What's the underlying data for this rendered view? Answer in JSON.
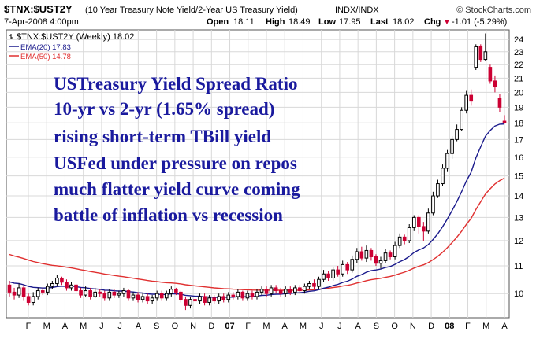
{
  "header": {
    "symbol": "$TNX:$UST2Y",
    "description": "(10 Year Treasury Note Yield/2-Year US Treasury Yield)",
    "exchange": "INDX/INDX",
    "brand": "© StockCharts.com",
    "date": "7-Apr-2008 4:00pm",
    "open_label": "Open",
    "open": "18.11",
    "high_label": "High",
    "high": "18.49",
    "low_label": "Low",
    "low": "17.95",
    "last_label": "Last",
    "last": "18.02",
    "chg_label": "Chg",
    "chg": "-1.01 (-5.29%)",
    "chg_arrow": "▼"
  },
  "legend": {
    "price": "$TNX:$UST2Y (Weekly) 18.02",
    "ema20": "EMA(20) 17.83",
    "ema50": "EMA(50) 14.78"
  },
  "annotation": [
    "USTreasury Yield Spread Ratio",
    "10-yr  vs  2-yr  (1.65% spread)",
    "rising short-term TBill yield",
    "USFed under pressure on repos",
    "much flatter yield curve coming",
    "battle of inflation  vs  recession"
  ],
  "colors": {
    "up": "#000000",
    "down": "#cc0033",
    "ema20": "#1a1a8c",
    "ema50": "#e03030",
    "annotation": "#1a1a9e",
    "grid": "#d8d8d8"
  },
  "chart_data": {
    "type": "candlestick",
    "period": "weekly",
    "x_ticks": [
      "F",
      "M",
      "A",
      "M",
      "J",
      "J",
      "A",
      "S",
      "O",
      "N",
      "D",
      "07",
      "F",
      "M",
      "A",
      "M",
      "J",
      "J",
      "A",
      "S",
      "O",
      "N",
      "D",
      "08",
      "F",
      "M",
      "A"
    ],
    "y_ticks": [
      10,
      11,
      12,
      13,
      14,
      15,
      16,
      17,
      18,
      19,
      20,
      21,
      22,
      23,
      24
    ],
    "ylim": [
      9.2,
      24.8
    ],
    "y_scale": "log",
    "grid": true,
    "ema20_last": 17.83,
    "ema50_last": 14.78,
    "candles": [
      {
        "open": 10.3,
        "close": 10.05,
        "high": 10.45,
        "low": 9.9
      },
      {
        "open": 10.05,
        "close": 9.95,
        "high": 10.2,
        "low": 9.8
      },
      {
        "open": 9.95,
        "close": 10.2,
        "high": 10.35,
        "low": 9.85
      },
      {
        "open": 10.2,
        "close": 9.9,
        "high": 10.3,
        "low": 9.75
      },
      {
        "open": 9.9,
        "close": 9.7,
        "high": 10.0,
        "low": 9.6
      },
      {
        "open": 9.7,
        "close": 9.9,
        "high": 10.05,
        "low": 9.6
      },
      {
        "open": 9.9,
        "close": 10.1,
        "high": 10.2,
        "low": 9.8
      },
      {
        "open": 10.1,
        "close": 10.05,
        "high": 10.2,
        "low": 9.95
      },
      {
        "open": 10.05,
        "close": 10.25,
        "high": 10.35,
        "low": 9.95
      },
      {
        "open": 10.25,
        "close": 10.35,
        "high": 10.45,
        "low": 10.15
      },
      {
        "open": 10.35,
        "close": 10.55,
        "high": 10.65,
        "low": 10.25
      },
      {
        "open": 10.55,
        "close": 10.4,
        "high": 10.6,
        "low": 10.3
      },
      {
        "open": 10.4,
        "close": 10.2,
        "high": 10.5,
        "low": 10.1
      },
      {
        "open": 10.2,
        "close": 10.3,
        "high": 10.4,
        "low": 10.1
      },
      {
        "open": 10.3,
        "close": 10.1,
        "high": 10.35,
        "low": 10.0
      },
      {
        "open": 10.1,
        "close": 9.95,
        "high": 10.2,
        "low": 9.85
      },
      {
        "open": 9.95,
        "close": 10.1,
        "high": 10.25,
        "low": 9.9
      },
      {
        "open": 10.1,
        "close": 9.9,
        "high": 10.2,
        "low": 9.8
      },
      {
        "open": 9.9,
        "close": 10.05,
        "high": 10.2,
        "low": 9.85
      },
      {
        "open": 10.05,
        "close": 10.0,
        "high": 10.15,
        "low": 9.9
      },
      {
        "open": 10.0,
        "close": 9.85,
        "high": 10.1,
        "low": 9.75
      },
      {
        "open": 9.85,
        "close": 10.05,
        "high": 10.15,
        "low": 9.75
      },
      {
        "open": 10.05,
        "close": 9.95,
        "high": 10.15,
        "low": 9.85
      },
      {
        "open": 9.95,
        "close": 10.0,
        "high": 10.1,
        "low": 9.85
      },
      {
        "open": 10.0,
        "close": 10.1,
        "high": 10.2,
        "low": 9.9
      },
      {
        "open": 10.1,
        "close": 9.85,
        "high": 10.15,
        "low": 9.75
      },
      {
        "open": 9.85,
        "close": 9.95,
        "high": 10.05,
        "low": 9.75
      },
      {
        "open": 9.95,
        "close": 9.8,
        "high": 10.05,
        "low": 9.7
      },
      {
        "open": 9.8,
        "close": 9.9,
        "high": 10.0,
        "low": 9.7
      },
      {
        "open": 9.9,
        "close": 9.75,
        "high": 10.0,
        "low": 9.65
      },
      {
        "open": 9.75,
        "close": 9.85,
        "high": 9.95,
        "low": 9.65
      },
      {
        "open": 9.85,
        "close": 10.0,
        "high": 10.1,
        "low": 9.75
      },
      {
        "open": 10.0,
        "close": 9.85,
        "high": 10.1,
        "low": 9.75
      },
      {
        "open": 9.85,
        "close": 10.0,
        "high": 10.1,
        "low": 9.75
      },
      {
        "open": 10.0,
        "close": 10.15,
        "high": 10.25,
        "low": 9.9
      },
      {
        "open": 10.15,
        "close": 10.05,
        "high": 10.2,
        "low": 9.95
      },
      {
        "open": 10.05,
        "close": 9.8,
        "high": 10.1,
        "low": 9.7
      },
      {
        "open": 9.8,
        "close": 9.6,
        "high": 9.9,
        "low": 9.45
      },
      {
        "open": 9.6,
        "close": 9.8,
        "high": 9.9,
        "low": 9.5
      },
      {
        "open": 9.8,
        "close": 9.75,
        "high": 9.9,
        "low": 9.65
      },
      {
        "open": 9.75,
        "close": 9.9,
        "high": 10.0,
        "low": 9.65
      },
      {
        "open": 9.9,
        "close": 9.7,
        "high": 10.0,
        "low": 9.6
      },
      {
        "open": 9.7,
        "close": 9.85,
        "high": 9.95,
        "low": 9.6
      },
      {
        "open": 9.85,
        "close": 9.75,
        "high": 9.95,
        "low": 9.65
      },
      {
        "open": 9.75,
        "close": 9.9,
        "high": 10.0,
        "low": 9.65
      },
      {
        "open": 9.9,
        "close": 9.8,
        "high": 10.0,
        "low": 9.7
      },
      {
        "open": 9.8,
        "close": 9.95,
        "high": 10.05,
        "low": 9.7
      },
      {
        "open": 9.95,
        "close": 9.9,
        "high": 10.05,
        "low": 9.8
      },
      {
        "open": 9.9,
        "close": 10.05,
        "high": 10.15,
        "low": 9.8
      },
      {
        "open": 10.05,
        "close": 9.85,
        "high": 10.1,
        "low": 9.75
      },
      {
        "open": 9.85,
        "close": 10.0,
        "high": 10.1,
        "low": 9.75
      },
      {
        "open": 10.0,
        "close": 9.9,
        "high": 10.1,
        "low": 9.8
      },
      {
        "open": 9.9,
        "close": 10.05,
        "high": 10.15,
        "low": 9.8
      },
      {
        "open": 10.05,
        "close": 10.15,
        "high": 10.25,
        "low": 9.95
      },
      {
        "open": 10.15,
        "close": 10.0,
        "high": 10.25,
        "low": 9.9
      },
      {
        "open": 10.0,
        "close": 10.2,
        "high": 10.3,
        "low": 9.9
      },
      {
        "open": 10.2,
        "close": 10.1,
        "high": 10.3,
        "low": 10.0
      },
      {
        "open": 10.1,
        "close": 10.0,
        "high": 10.2,
        "low": 9.9
      },
      {
        "open": 10.0,
        "close": 10.15,
        "high": 10.25,
        "low": 9.9
      },
      {
        "open": 10.15,
        "close": 10.05,
        "high": 10.25,
        "low": 9.95
      },
      {
        "open": 10.05,
        "close": 10.2,
        "high": 10.3,
        "low": 9.95
      },
      {
        "open": 10.2,
        "close": 10.1,
        "high": 10.3,
        "low": 10.0
      },
      {
        "open": 10.1,
        "close": 10.25,
        "high": 10.35,
        "low": 10.0
      },
      {
        "open": 10.25,
        "close": 10.35,
        "high": 10.45,
        "low": 10.15
      },
      {
        "open": 10.35,
        "close": 10.25,
        "high": 10.5,
        "low": 10.15
      },
      {
        "open": 10.25,
        "close": 10.5,
        "high": 10.6,
        "low": 10.15
      },
      {
        "open": 10.5,
        "close": 10.7,
        "high": 10.85,
        "low": 10.4
      },
      {
        "open": 10.7,
        "close": 10.55,
        "high": 10.8,
        "low": 10.45
      },
      {
        "open": 10.55,
        "close": 10.85,
        "high": 10.95,
        "low": 10.45
      },
      {
        "open": 10.85,
        "close": 10.7,
        "high": 11.0,
        "low": 10.6
      },
      {
        "open": 10.7,
        "close": 11.05,
        "high": 11.2,
        "low": 10.6
      },
      {
        "open": 11.05,
        "close": 10.85,
        "high": 11.15,
        "low": 10.7
      },
      {
        "open": 10.85,
        "close": 11.25,
        "high": 11.4,
        "low": 10.75
      },
      {
        "open": 11.25,
        "close": 11.55,
        "high": 11.7,
        "low": 11.1
      },
      {
        "open": 11.55,
        "close": 11.3,
        "high": 11.75,
        "low": 11.2
      },
      {
        "open": 11.3,
        "close": 11.6,
        "high": 11.8,
        "low": 11.15
      },
      {
        "open": 11.6,
        "close": 11.35,
        "high": 11.7,
        "low": 11.2
      },
      {
        "open": 11.35,
        "close": 11.1,
        "high": 11.45,
        "low": 11.0
      },
      {
        "open": 11.1,
        "close": 11.2,
        "high": 11.35,
        "low": 10.9
      },
      {
        "open": 11.2,
        "close": 11.5,
        "high": 11.65,
        "low": 11.1
      },
      {
        "open": 11.5,
        "close": 11.35,
        "high": 11.6,
        "low": 11.25
      },
      {
        "open": 11.35,
        "close": 11.8,
        "high": 11.95,
        "low": 11.25
      },
      {
        "open": 11.8,
        "close": 12.15,
        "high": 12.3,
        "low": 11.7
      },
      {
        "open": 12.15,
        "close": 12.0,
        "high": 12.25,
        "low": 11.85
      },
      {
        "open": 12.0,
        "close": 12.55,
        "high": 12.7,
        "low": 11.9
      },
      {
        "open": 12.55,
        "close": 13.0,
        "high": 13.1,
        "low": 12.4
      },
      {
        "open": 13.0,
        "close": 12.6,
        "high": 13.1,
        "low": 12.3
      },
      {
        "open": 12.6,
        "close": 12.4,
        "high": 12.8,
        "low": 12.0
      },
      {
        "open": 12.4,
        "close": 13.2,
        "high": 13.4,
        "low": 12.3
      },
      {
        "open": 13.2,
        "close": 14.0,
        "high": 14.2,
        "low": 13.1
      },
      {
        "open": 14.0,
        "close": 14.6,
        "high": 14.8,
        "low": 13.9
      },
      {
        "open": 14.6,
        "close": 15.4,
        "high": 15.6,
        "low": 14.5
      },
      {
        "open": 15.4,
        "close": 16.2,
        "high": 16.4,
        "low": 15.2
      },
      {
        "open": 16.2,
        "close": 17.0,
        "high": 17.2,
        "low": 15.9
      },
      {
        "open": 17.0,
        "close": 17.6,
        "high": 17.9,
        "low": 16.9
      },
      {
        "open": 17.6,
        "close": 18.8,
        "high": 19.0,
        "low": 17.5
      },
      {
        "open": 18.8,
        "close": 19.8,
        "high": 20.1,
        "low": 18.6
      },
      {
        "open": 19.8,
        "close": 19.4,
        "high": 20.2,
        "low": 19.1
      },
      {
        "open": 21.8,
        "close": 23.4,
        "high": 23.6,
        "low": 21.6
      },
      {
        "open": 23.4,
        "close": 22.4,
        "high": 23.6,
        "low": 22.2
      },
      {
        "open": 22.4,
        "close": 23.0,
        "high": 24.5,
        "low": 22.3
      },
      {
        "open": 21.8,
        "close": 20.8,
        "high": 22.0,
        "low": 20.6
      },
      {
        "open": 20.8,
        "close": 20.4,
        "high": 21.2,
        "low": 20.0
      },
      {
        "open": 19.6,
        "close": 19.0,
        "high": 19.9,
        "low": 18.7
      },
      {
        "open": 18.11,
        "close": 18.02,
        "high": 18.49,
        "low": 17.95
      }
    ]
  }
}
